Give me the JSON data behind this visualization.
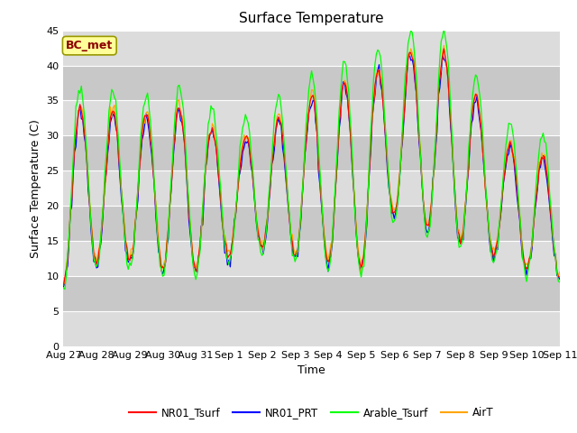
{
  "title": "Surface Temperature",
  "xlabel": "Time",
  "ylabel": "Surface Temperature (C)",
  "ylim": [
    0,
    45
  ],
  "yticks": [
    0,
    5,
    10,
    15,
    20,
    25,
    30,
    35,
    40,
    45
  ],
  "xtick_labels": [
    "Aug 27",
    "Aug 28",
    "Aug 29",
    "Aug 30",
    "Aug 31",
    "Sep 1",
    "Sep 2",
    "Sep 3",
    "Sep 4",
    "Sep 5",
    "Sep 6",
    "Sep 7",
    "Sep 8",
    "Sep 9",
    "Sep 10",
    "Sep 11"
  ],
  "legend_labels": [
    "NR01_Tsurf",
    "NR01_PRT",
    "Arable_Tsurf",
    "AirT"
  ],
  "line_colors": [
    "red",
    "blue",
    "lime",
    "orange"
  ],
  "annotation_text": "BC_met",
  "annotation_color": "#8B0000",
  "annotation_bg": "#FFFF99",
  "plot_bg": "#DCDCDC",
  "band_colors": [
    "#D3D3D3",
    "#C8C8C8"
  ],
  "title_fontsize": 11,
  "label_fontsize": 9,
  "tick_fontsize": 8
}
